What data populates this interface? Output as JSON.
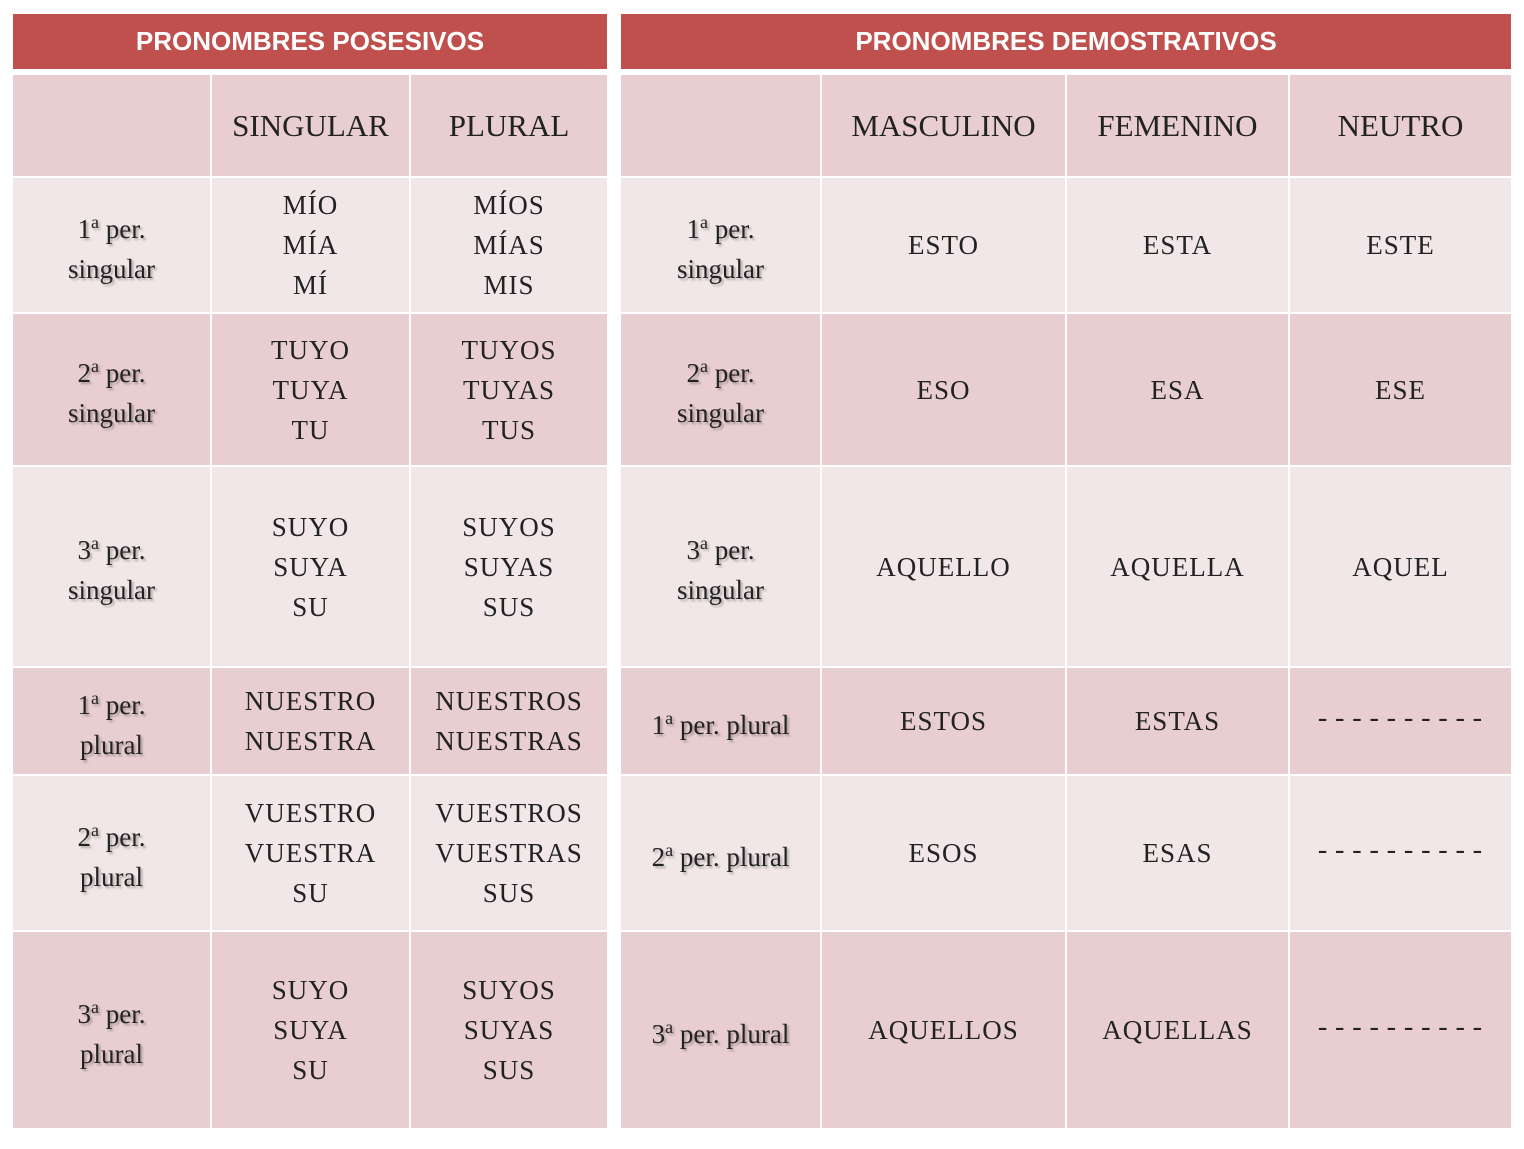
{
  "posesivos": {
    "title": "PRONOMBRES POSESIVOS",
    "headers": [
      "",
      "SINGULAR",
      "PLURAL"
    ],
    "rows": [
      {
        "num": "1",
        "ord": "a",
        "label_a": " per.",
        "label_b": "singular",
        "singular": [
          "MÍO",
          "MÍA",
          "MÍ"
        ],
        "plural": [
          "MÍOS",
          "MÍAS",
          "MIS"
        ]
      },
      {
        "num": "2",
        "ord": "a",
        "label_a": " per.",
        "label_b": "singular",
        "singular": [
          "TUYO",
          "TUYA",
          "TU"
        ],
        "plural": [
          "TUYOS",
          "TUYAS",
          "TUS"
        ]
      },
      {
        "num": "3",
        "ord": "a",
        "label_a": " per.",
        "label_b": "singular",
        "singular": [
          "SUYO",
          "SUYA",
          "SU"
        ],
        "plural": [
          "SUYOS",
          "SUYAS",
          "SUS"
        ]
      },
      {
        "num": "1",
        "ord": "a",
        "label_a": " per.",
        "label_b": "plural",
        "singular": [
          "NUESTRO",
          "NUESTRA"
        ],
        "plural": [
          "NUESTROS",
          "NUESTRAS"
        ]
      },
      {
        "num": "2",
        "ord": "a",
        "label_a": " per.",
        "label_b": "plural",
        "singular": [
          "VUESTRO",
          "VUESTRA",
          "SU"
        ],
        "plural": [
          "VUESTROS",
          "VUESTRAS",
          "SUS"
        ]
      },
      {
        "num": "3",
        "ord": "a",
        "label_a": " per.",
        "label_b": "plural",
        "singular": [
          "SUYO",
          "SUYA",
          "SU"
        ],
        "plural": [
          "SUYOS",
          "SUYAS",
          "SUS"
        ]
      }
    ]
  },
  "demostrativos": {
    "title": "PRONOMBRES DEMOSTRATIVOS",
    "headers": [
      "",
      "MASCULINO",
      "FEMENINO",
      "NEUTRO"
    ],
    "rows": [
      {
        "num": "1",
        "ord": "a",
        "label_a": " per.",
        "label_b": "singular",
        "masculino": "ESTO",
        "femenino": "ESTA",
        "neutro": "ESTE"
      },
      {
        "num": "2",
        "ord": "a",
        "label_a": " per.",
        "label_b": "singular",
        "masculino": "ESO",
        "femenino": "ESA",
        "neutro": "ESE"
      },
      {
        "num": "3",
        "ord": "a",
        "label_a": " per.",
        "label_b": "singular",
        "masculino": "AQUELLO",
        "femenino": "AQUELLA",
        "neutro": "AQUEL"
      },
      {
        "num": "1",
        "ord": "a",
        "label_a": " per. plural",
        "label_b": "",
        "masculino": "ESTOS",
        "femenino": "ESTAS",
        "neutro": "----------"
      },
      {
        "num": "2",
        "ord": "a",
        "label_a": " per. plural",
        "label_b": "",
        "masculino": "ESOS",
        "femenino": "ESAS",
        "neutro": "----------"
      },
      {
        "num": "3",
        "ord": "a",
        "label_a": " per. plural",
        "label_b": "",
        "masculino": "AQUELLOS",
        "femenino": "AQUELLAS",
        "neutro": "----------"
      }
    ]
  },
  "colors": {
    "header_red": "#c0504d",
    "row_dark": "#e8ced0",
    "row_light": "#f2e7e8"
  }
}
